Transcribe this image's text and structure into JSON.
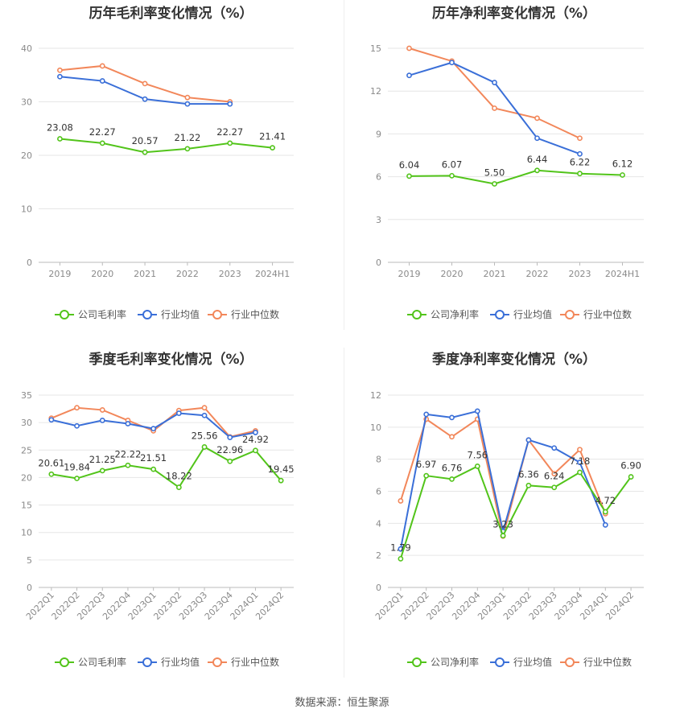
{
  "colors": {
    "company": "#52c41a",
    "avg": "#3a6fd8",
    "median": "#f2875a"
  },
  "source_text": "数据来源：恒生聚源",
  "chart_data": [
    {
      "type": "line",
      "title": "历年毛利率变化情况（%）",
      "categories": [
        "2019",
        "2020",
        "2021",
        "2022",
        "2023",
        "2024H1"
      ],
      "ylim": [
        0,
        40
      ],
      "yticks": [
        0,
        10,
        20,
        30,
        40
      ],
      "rotate_x": false,
      "series": [
        {
          "name": "公司毛利率",
          "key": "company",
          "values": [
            23.08,
            22.27,
            20.57,
            21.22,
            22.27,
            21.41
          ],
          "labels": [
            "23.08",
            "22.27",
            "20.57",
            "21.22",
            "22.27",
            "21.41"
          ]
        },
        {
          "name": "行业均值",
          "key": "avg",
          "values": [
            34.7,
            33.9,
            30.5,
            29.6,
            29.6,
            null
          ]
        },
        {
          "name": "行业中位数",
          "key": "median",
          "values": [
            35.9,
            36.7,
            33.4,
            30.8,
            30.0,
            null
          ]
        }
      ],
      "legend": "bottom"
    },
    {
      "type": "line",
      "title": "历年净利率变化情况（%）",
      "categories": [
        "2019",
        "2020",
        "2021",
        "2022",
        "2023",
        "2024H1"
      ],
      "ylim": [
        0,
        15
      ],
      "yticks": [
        0,
        3,
        6,
        9,
        12,
        15
      ],
      "rotate_x": false,
      "series": [
        {
          "name": "公司净利率",
          "key": "company",
          "values": [
            6.04,
            6.07,
            5.5,
            6.44,
            6.22,
            6.12
          ],
          "labels": [
            "6.04",
            "6.07",
            "5.50",
            "6.44",
            "6.22",
            "6.12"
          ]
        },
        {
          "name": "行业均值",
          "key": "avg",
          "values": [
            13.1,
            14.0,
            12.6,
            8.7,
            7.6,
            null
          ]
        },
        {
          "name": "行业中位数",
          "key": "median",
          "values": [
            15.0,
            14.1,
            10.8,
            10.1,
            8.7,
            null
          ]
        }
      ],
      "legend": "bottom"
    },
    {
      "type": "line",
      "title": "季度毛利率变化情况（%）",
      "categories": [
        "2022Q1",
        "2022Q2",
        "2022Q3",
        "2022Q4",
        "2023Q1",
        "2023Q2",
        "2023Q3",
        "2023Q4",
        "2024Q1",
        "2024Q2"
      ],
      "ylim": [
        0,
        35
      ],
      "yticks": [
        0,
        5,
        10,
        15,
        20,
        25,
        30,
        35
      ],
      "rotate_x": true,
      "series": [
        {
          "name": "公司毛利率",
          "key": "company",
          "values": [
            20.61,
            19.84,
            21.25,
            22.22,
            21.51,
            18.22,
            25.56,
            22.96,
            24.92,
            19.45
          ],
          "labels": [
            "20.61",
            "19.84",
            "21.25",
            "22.22",
            "21.51",
            "18.22",
            "25.56",
            "22.96",
            "24.92",
            "19.45"
          ]
        },
        {
          "name": "行业均值",
          "key": "avg",
          "values": [
            30.5,
            29.4,
            30.4,
            29.8,
            28.9,
            31.7,
            31.3,
            27.3,
            28.2,
            null
          ]
        },
        {
          "name": "行业中位数",
          "key": "median",
          "values": [
            30.8,
            32.7,
            32.3,
            30.4,
            28.5,
            32.2,
            32.7,
            27.4,
            28.5,
            null
          ]
        }
      ],
      "legend": "bottom"
    },
    {
      "type": "line",
      "title": "季度净利率变化情况（%）",
      "categories": [
        "2022Q1",
        "2022Q2",
        "2022Q3",
        "2022Q4",
        "2023Q1",
        "2023Q2",
        "2023Q3",
        "2023Q4",
        "2024Q1",
        "2024Q2"
      ],
      "ylim": [
        0,
        12
      ],
      "yticks": [
        0,
        2,
        4,
        6,
        8,
        10,
        12
      ],
      "rotate_x": true,
      "series": [
        {
          "name": "公司净利率",
          "key": "company",
          "values": [
            1.79,
            6.97,
            6.76,
            7.56,
            3.23,
            6.36,
            6.24,
            7.18,
            4.72,
            6.9
          ],
          "labels": [
            "1.79",
            "6.97",
            "6.76",
            "7.56",
            "3.23",
            "6.36",
            "6.24",
            "7.18",
            "4.72",
            "6.90"
          ]
        },
        {
          "name": "行业均值",
          "key": "avg",
          "values": [
            2.4,
            10.8,
            10.6,
            11.0,
            3.5,
            9.2,
            8.7,
            7.8,
            3.9,
            null
          ]
        },
        {
          "name": "行业中位数",
          "key": "median",
          "values": [
            5.4,
            10.5,
            9.4,
            10.5,
            3.2,
            9.2,
            7.1,
            8.6,
            4.6,
            null
          ]
        }
      ],
      "legend": "bottom"
    }
  ]
}
